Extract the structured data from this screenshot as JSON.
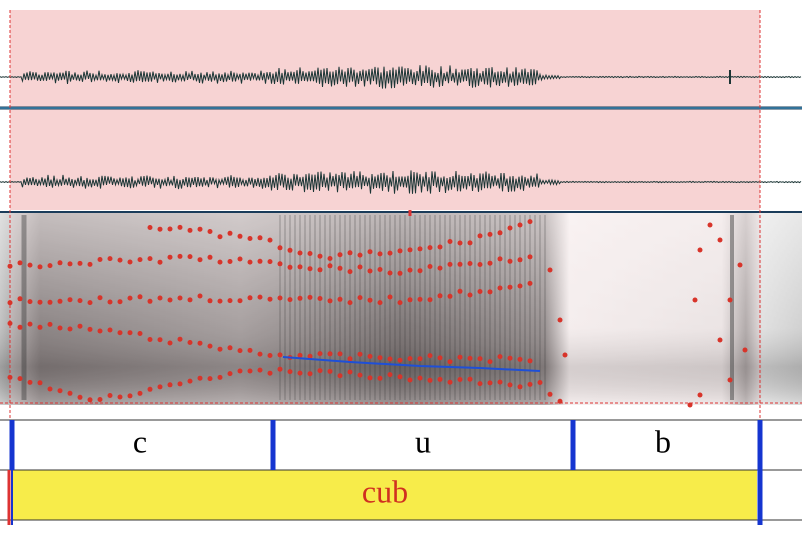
{
  "tiers": [
    {
      "intervals": [
        {
          "label": "c"
        },
        {
          "label": "u"
        },
        {
          "label": "b"
        }
      ]
    },
    {
      "intervals": [
        {
          "label": "cub"
        }
      ]
    }
  ]
}
